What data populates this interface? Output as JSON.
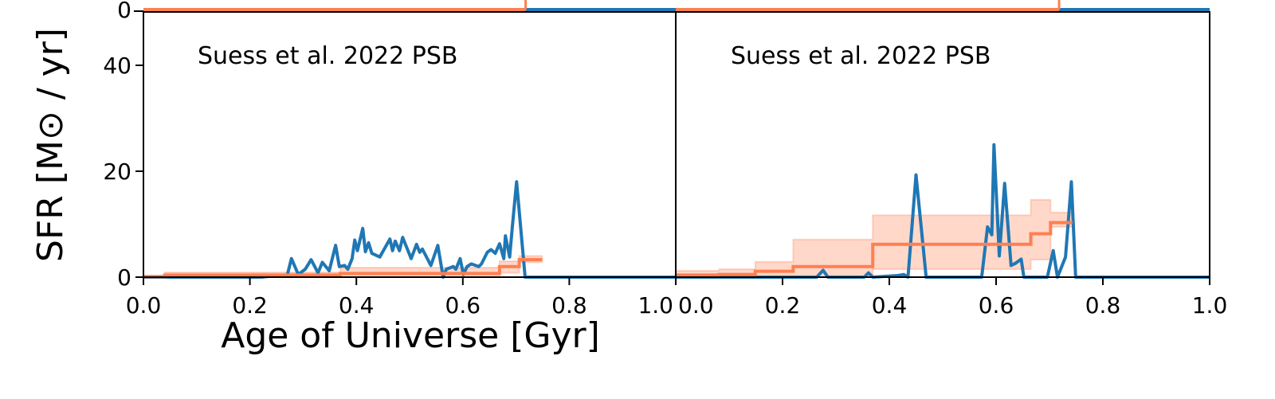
{
  "chart_data": [
    {
      "type": "line",
      "panel": "top-left",
      "cropped": true,
      "yticks": [
        "0"
      ],
      "note_visible": "only bottom edge of panel visible"
    },
    {
      "type": "line",
      "panel": "top-right",
      "cropped": true,
      "yticks": []
    },
    {
      "type": "line",
      "panel": "bottom-left",
      "annotation": "Suess et al. 2022 PSB",
      "xlabel": "Age of Universe [Gyr]",
      "ylabel": "SFR [M⊙ / yr]",
      "xlim": [
        0,
        1.0
      ],
      "ylim": [
        0,
        45
      ],
      "xticks": [
        "0.0",
        "0.2",
        "0.4",
        "0.6",
        "0.8",
        "1.0"
      ],
      "yticks": [
        "0",
        "20",
        "40"
      ],
      "grid": false,
      "series": [
        {
          "color": "#1f77b4",
          "style": "line",
          "x": [
            0,
            0.222,
            0.249,
            0.27,
            0.278,
            0.291,
            0.304,
            0.315,
            0.328,
            0.336,
            0.349,
            0.361,
            0.368,
            0.378,
            0.384,
            0.392,
            0.397,
            0.402,
            0.412,
            0.417,
            0.423,
            0.429,
            0.444,
            0.463,
            0.468,
            0.473,
            0.481,
            0.487,
            0.503,
            0.513,
            0.519,
            0.524,
            0.54,
            0.553,
            0.563,
            0.569,
            0.582,
            0.587,
            0.595,
            0.601,
            0.608,
            0.616,
            0.63,
            0.635,
            0.646,
            0.653,
            0.661,
            0.669,
            0.677,
            0.68,
            0.688,
            0.693,
            0.701,
            0.717,
            1.0
          ],
          "y": [
            0,
            0,
            0.3,
            0.3,
            3.5,
            0.5,
            1.5,
            3.3,
            0.8,
            2.8,
            1.2,
            6,
            2,
            2.2,
            1.5,
            3.5,
            7,
            5,
            9.2,
            4.8,
            6.5,
            4.5,
            3.8,
            7.2,
            5,
            6.8,
            5,
            7.5,
            3.5,
            6.2,
            4.7,
            5.3,
            2.2,
            6,
            0,
            1.5,
            2,
            1.5,
            3.5,
            0.5,
            2,
            2.5,
            2,
            2.5,
            4.7,
            5.2,
            4.5,
            6.3,
            3.5,
            7.8,
            3.8,
            9.5,
            18,
            0,
            0
          ]
        },
        {
          "color": "#ff7f50",
          "style": "step",
          "edges": [
            0,
            0.04,
            0.37,
            0.669,
            0.706,
            0.749
          ],
          "median": [
            0.1,
            0.4,
            0.7,
            2.0,
            3.3
          ],
          "upper": [
            0.3,
            0.9,
            1.8,
            3.0,
            4.0
          ],
          "lower": [
            0,
            0,
            0,
            0.8,
            2.8
          ]
        }
      ]
    },
    {
      "type": "line",
      "panel": "bottom-right",
      "annotation": "Suess et al. 2022 PSB",
      "xlim": [
        0,
        1.0
      ],
      "ylim": [
        0,
        45
      ],
      "xticks": [
        "0.0",
        "0.2",
        "0.4",
        "0.6",
        "0.8",
        "1.0"
      ],
      "grid": false,
      "series": [
        {
          "color": "#1f77b4",
          "style": "line",
          "x": [
            0,
            0.264,
            0.276,
            0.285,
            0.353,
            0.361,
            0.369,
            0.416,
            0.427,
            0.435,
            0.45,
            0.469,
            0.573,
            0.584,
            0.592,
            0.596,
            0.606,
            0.616,
            0.628,
            0.636,
            0.647,
            0.652,
            0.696,
            0.707,
            0.715,
            0.73,
            0.741,
            0.749,
            1.0
          ],
          "y": [
            0,
            0,
            1.3,
            0,
            0,
            0.8,
            0,
            0.3,
            0.5,
            0,
            19.3,
            0,
            0,
            9.5,
            8,
            25,
            4,
            17.7,
            2.2,
            2.6,
            3.4,
            0,
            0,
            5,
            0,
            3.8,
            18,
            0,
            0
          ]
        },
        {
          "color": "#ff7f50",
          "style": "step",
          "edges": [
            0,
            0.081,
            0.149,
            0.22,
            0.369,
            0.665,
            0.702,
            0.743
          ],
          "median": [
            0.4,
            0.5,
            1.1,
            2.0,
            6.2,
            8.2,
            10.3
          ],
          "upper": [
            1.2,
            1.5,
            2.9,
            7.1,
            11.7,
            14.6,
            12.2
          ],
          "lower": [
            0,
            0,
            0,
            0,
            1.5,
            3.3,
            9.5
          ]
        }
      ]
    }
  ]
}
